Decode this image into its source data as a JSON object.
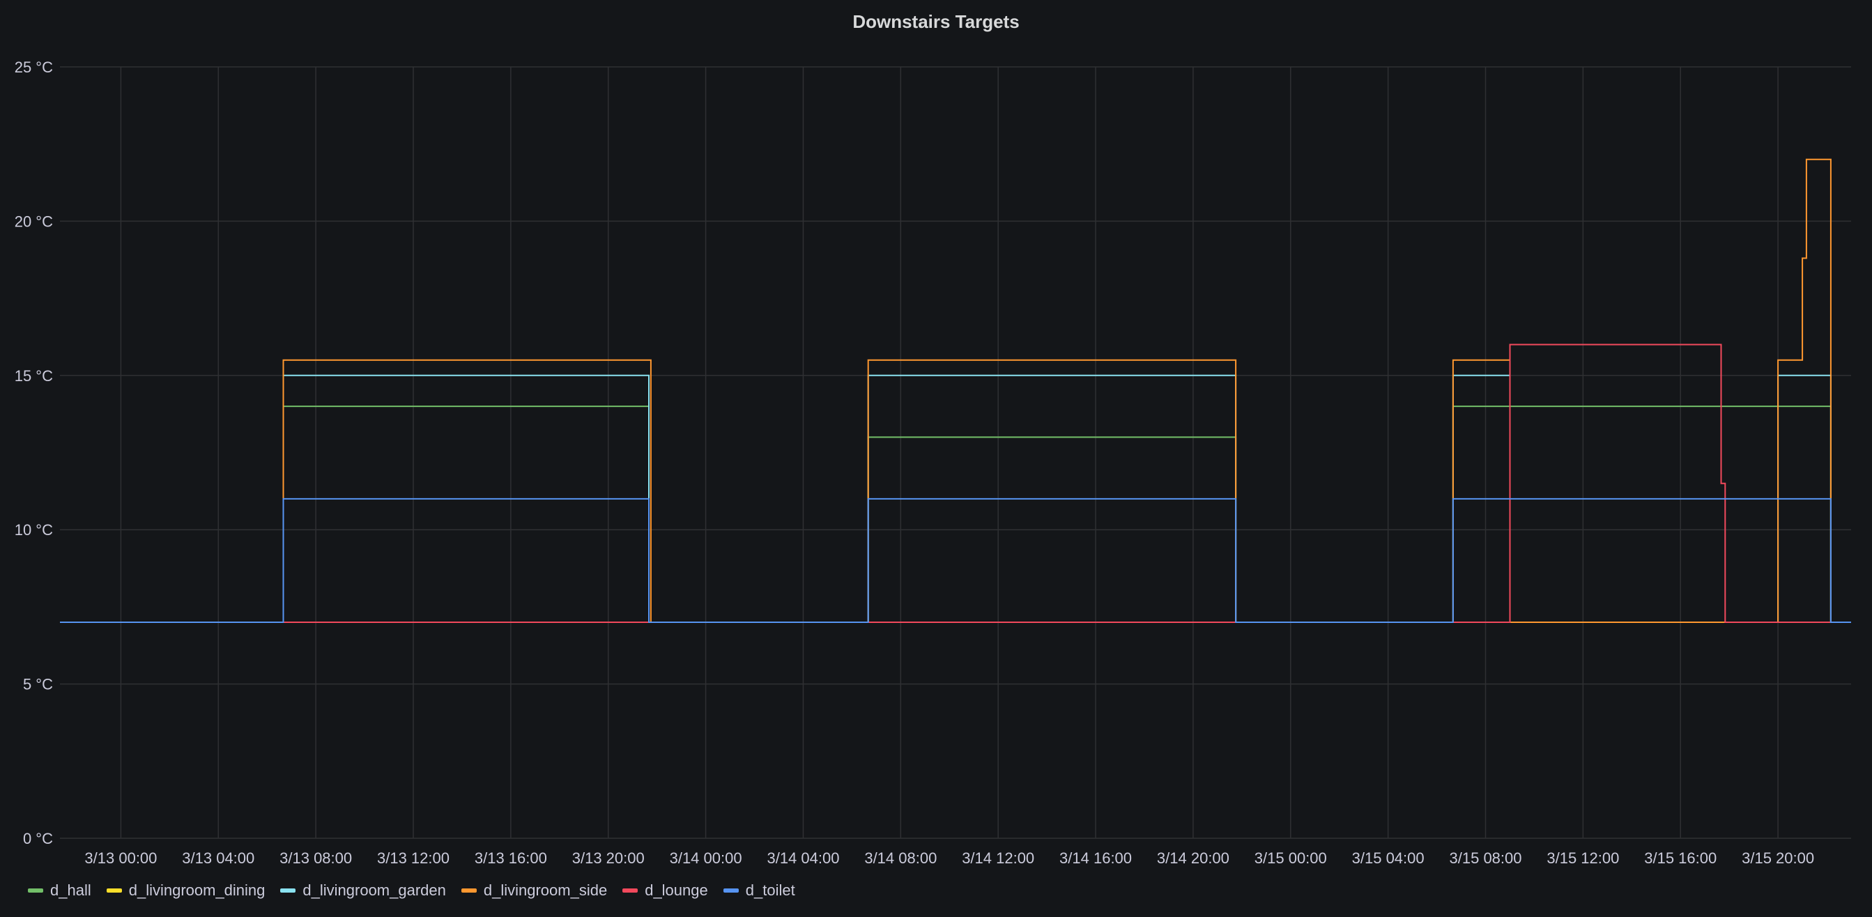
{
  "chart_data": {
    "type": "line",
    "title": "Downstairs Targets",
    "xlabel": "",
    "ylabel": "",
    "ylim": [
      0,
      25
    ],
    "xlim": [
      "2021-03-12T21:30",
      "2021-03-15T23:00"
    ],
    "grid": true,
    "legend": "bottom-left",
    "y_ticks": [
      "0 °C",
      "5 °C",
      "10 °C",
      "15 °C",
      "20 °C",
      "25 °C"
    ],
    "y_tick_values": [
      0,
      5,
      10,
      15,
      20,
      25
    ],
    "x_ticks": [
      "3/13 00:00",
      "3/13 04:00",
      "3/13 08:00",
      "3/13 12:00",
      "3/13 16:00",
      "3/13 20:00",
      "3/14 00:00",
      "3/14 04:00",
      "3/14 08:00",
      "3/14 12:00",
      "3/14 16:00",
      "3/14 20:00",
      "3/15 00:00",
      "3/15 04:00",
      "3/15 08:00",
      "3/15 12:00",
      "3/15 16:00",
      "3/15 20:00"
    ],
    "x_tick_values": [
      "2021-03-13T00:00",
      "2021-03-13T04:00",
      "2021-03-13T08:00",
      "2021-03-13T12:00",
      "2021-03-13T16:00",
      "2021-03-13T20:00",
      "2021-03-14T00:00",
      "2021-03-14T04:00",
      "2021-03-14T08:00",
      "2021-03-14T12:00",
      "2021-03-14T16:00",
      "2021-03-14T20:00",
      "2021-03-15T00:00",
      "2021-03-15T04:00",
      "2021-03-15T08:00",
      "2021-03-15T12:00",
      "2021-03-15T16:00",
      "2021-03-15T20:00"
    ],
    "step": true,
    "series": [
      {
        "name": "d_hall",
        "color": "#73bf69",
        "points": [
          [
            "2021-03-12T21:30",
            7
          ],
          [
            "2021-03-13T06:40",
            14
          ],
          [
            "2021-03-13T21:40",
            7
          ],
          [
            "2021-03-14T06:40",
            13
          ],
          [
            "2021-03-14T21:45",
            7
          ],
          [
            "2021-03-15T06:40",
            14
          ],
          [
            "2021-03-15T22:10",
            7
          ],
          [
            "2021-03-15T23:00",
            7
          ]
        ]
      },
      {
        "name": "d_livingroom_dining",
        "color": "#fade2a",
        "points": [
          [
            "2021-03-12T21:30",
            7
          ],
          [
            "2021-03-15T23:00",
            7
          ]
        ]
      },
      {
        "name": "d_livingroom_garden",
        "color": "#8ae2f0",
        "points": [
          [
            "2021-03-12T21:30",
            7
          ],
          [
            "2021-03-13T06:40",
            15
          ],
          [
            "2021-03-13T21:40",
            7
          ],
          [
            "2021-03-14T06:40",
            15
          ],
          [
            "2021-03-14T21:45",
            7
          ],
          [
            "2021-03-15T06:40",
            15
          ],
          [
            "2021-03-15T09:00",
            7
          ],
          [
            "2021-03-15T20:00",
            15
          ],
          [
            "2021-03-15T22:10",
            7
          ],
          [
            "2021-03-15T23:00",
            7
          ]
        ]
      },
      {
        "name": "d_livingroom_side",
        "color": "#ff9830",
        "points": [
          [
            "2021-03-12T21:30",
            7
          ],
          [
            "2021-03-13T06:40",
            15.5
          ],
          [
            "2021-03-13T21:45",
            7
          ],
          [
            "2021-03-14T06:40",
            15.5
          ],
          [
            "2021-03-14T21:45",
            7
          ],
          [
            "2021-03-15T06:40",
            15.5
          ],
          [
            "2021-03-15T09:00",
            7
          ],
          [
            "2021-03-15T20:00",
            15.5
          ],
          [
            "2021-03-15T21:00",
            18.8
          ],
          [
            "2021-03-15T21:10",
            22
          ],
          [
            "2021-03-15T22:10",
            7
          ],
          [
            "2021-03-15T23:00",
            7
          ]
        ]
      },
      {
        "name": "d_lounge",
        "color": "#f2495c",
        "points": [
          [
            "2021-03-12T21:30",
            7
          ],
          [
            "2021-03-15T09:00",
            16
          ],
          [
            "2021-03-15T17:40",
            11.5
          ],
          [
            "2021-03-15T17:50",
            7
          ],
          [
            "2021-03-15T23:00",
            7
          ]
        ]
      },
      {
        "name": "d_toilet",
        "color": "#5794f2",
        "points": [
          [
            "2021-03-12T21:30",
            7
          ],
          [
            "2021-03-13T06:40",
            11
          ],
          [
            "2021-03-13T21:40",
            7
          ],
          [
            "2021-03-14T06:40",
            11
          ],
          [
            "2021-03-14T21:45",
            7
          ],
          [
            "2021-03-15T06:40",
            11
          ],
          [
            "2021-03-15T22:10",
            7
          ],
          [
            "2021-03-15T23:00",
            7
          ]
        ]
      }
    ]
  },
  "colors": {
    "background": "#141619",
    "grid": "#2f3033",
    "text": "#ccccdc"
  }
}
